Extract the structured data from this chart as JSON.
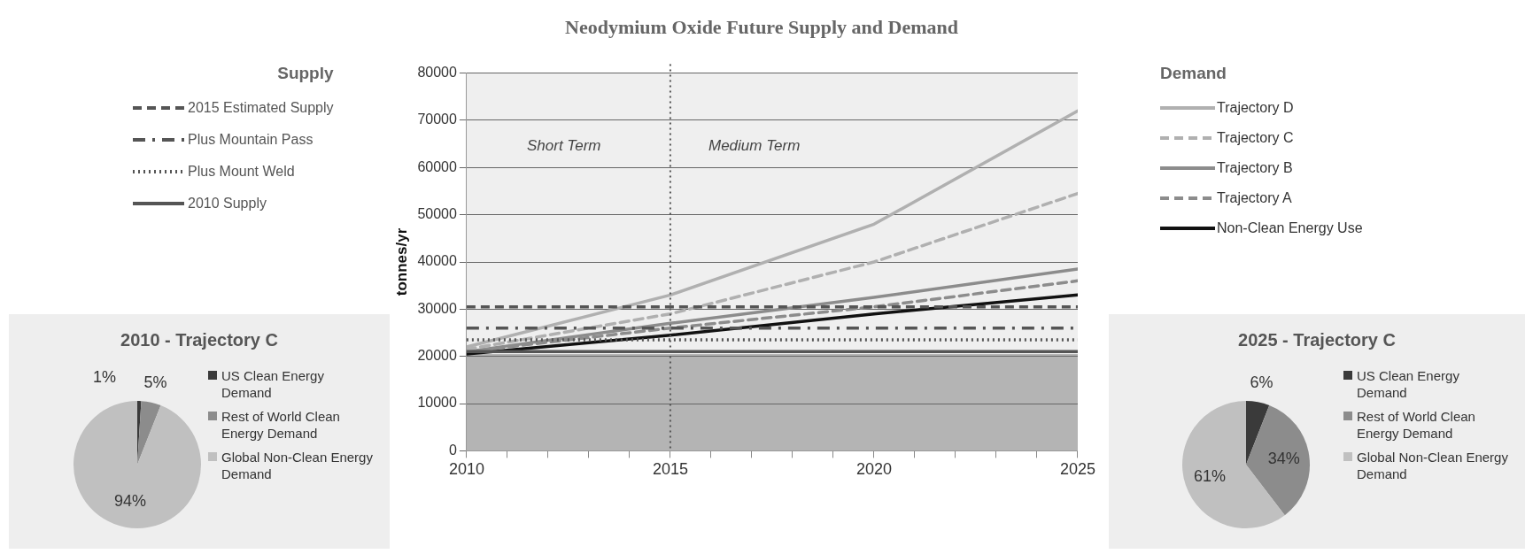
{
  "chart_data": [
    {
      "type": "line",
      "title": "Neodymium Oxide Future Supply and Demand",
      "ylabel": "tonnes/yr",
      "xlim": [
        2010,
        2025
      ],
      "xticks": [
        2010,
        {
          "value": 2011,
          "label": null
        },
        {
          "value": 2012,
          "label": null
        },
        {
          "value": 2013,
          "label": null
        },
        {
          "value": 2014,
          "label": null
        },
        2015,
        {
          "value": 2016,
          "label": null
        },
        {
          "value": 2017,
          "label": null
        },
        {
          "value": 2018,
          "label": null
        },
        {
          "value": 2019,
          "label": null
        },
        2020,
        {
          "value": 2021,
          "label": null
        },
        {
          "value": 2022,
          "label": null
        },
        {
          "value": 2023,
          "label": null
        },
        {
          "value": 2024,
          "label": null
        },
        2025
      ],
      "ylim": [
        0,
        80000
      ],
      "yticks": [
        0,
        10000,
        20000,
        30000,
        40000,
        50000,
        60000,
        70000,
        80000
      ],
      "grid": "y",
      "legend": "right",
      "legend_title": "Demand",
      "series": [
        {
          "name": "Trajectory D",
          "color": "#b0b0b0",
          "line_style": "solid",
          "x": [
            2010,
            2015,
            2020,
            2025
          ],
          "values": [
            22000,
            33000,
            48000,
            72000
          ]
        },
        {
          "name": "Trajectory C",
          "color": "#b0b0b0",
          "line_style": "dashed",
          "x": [
            2010,
            2015,
            2020,
            2025
          ],
          "values": [
            21500,
            29000,
            40000,
            54500
          ]
        },
        {
          "name": "Trajectory B",
          "color": "#8c8c8c",
          "line_style": "solid",
          "x": [
            2010,
            2015,
            2020,
            2025
          ],
          "values": [
            21000,
            27000,
            32500,
            38500
          ]
        },
        {
          "name": "Trajectory A",
          "color": "#8c8c8c",
          "line_style": "dashed",
          "x": [
            2010,
            2015,
            2020,
            2025
          ],
          "values": [
            21000,
            26000,
            30500,
            36000
          ]
        },
        {
          "name": "Non-Clean Energy Use",
          "color": "#111111",
          "line_style": "solid",
          "x": [
            2010,
            2015,
            2020,
            2025
          ],
          "values": [
            20500,
            24500,
            29000,
            33000
          ]
        }
      ],
      "ref_lines": [
        {
          "axis": "y",
          "value": 30500,
          "label": "2015 Estimated Supply",
          "color": "#555555",
          "line_style": "dashed"
        },
        {
          "axis": "y",
          "value": 26000,
          "label": "Plus Mountain Pass",
          "color": "#555555",
          "line_style": "dashdot"
        },
        {
          "axis": "y",
          "value": 23500,
          "label": "Plus Mount Weld",
          "color": "#555555",
          "line_style": "dotted"
        },
        {
          "axis": "y",
          "value": 21000,
          "label": "2010 Supply",
          "color": "#555555",
          "line_style": "solid"
        },
        {
          "axis": "x",
          "value": 2015,
          "label": null,
          "color": "#555555",
          "line_style": "dotted"
        }
      ],
      "bands": [
        {
          "axis": "y",
          "from": 0,
          "to": 20500,
          "color": "#b4b4b4"
        }
      ],
      "annotations": [
        "Supply",
        "Short Term",
        "Medium Term"
      ]
    },
    {
      "type": "pie",
      "title": "2010 - Trajectory C",
      "categories": [
        "US Clean Energy Demand",
        "Rest of World Clean Energy Demand",
        "Global Non-Clean Energy Demand"
      ],
      "values": [
        1,
        5,
        94
      ],
      "value_labels": [
        "1%",
        "5%",
        "94%"
      ],
      "colors": [
        "#3a3a3a",
        "#8c8c8c",
        "#c0c0c0"
      ],
      "legend": "right"
    },
    {
      "type": "pie",
      "title": "2025 - Trajectory C",
      "categories": [
        "US Clean Energy Demand",
        "Rest of World Clean Energy Demand",
        "Global Non-Clean Energy Demand"
      ],
      "values": [
        6,
        34,
        61
      ],
      "value_labels": [
        "6%",
        "34%",
        "61%"
      ],
      "colors": [
        "#3a3a3a",
        "#8c8c8c",
        "#c0c0c0"
      ],
      "legend": "right"
    }
  ]
}
